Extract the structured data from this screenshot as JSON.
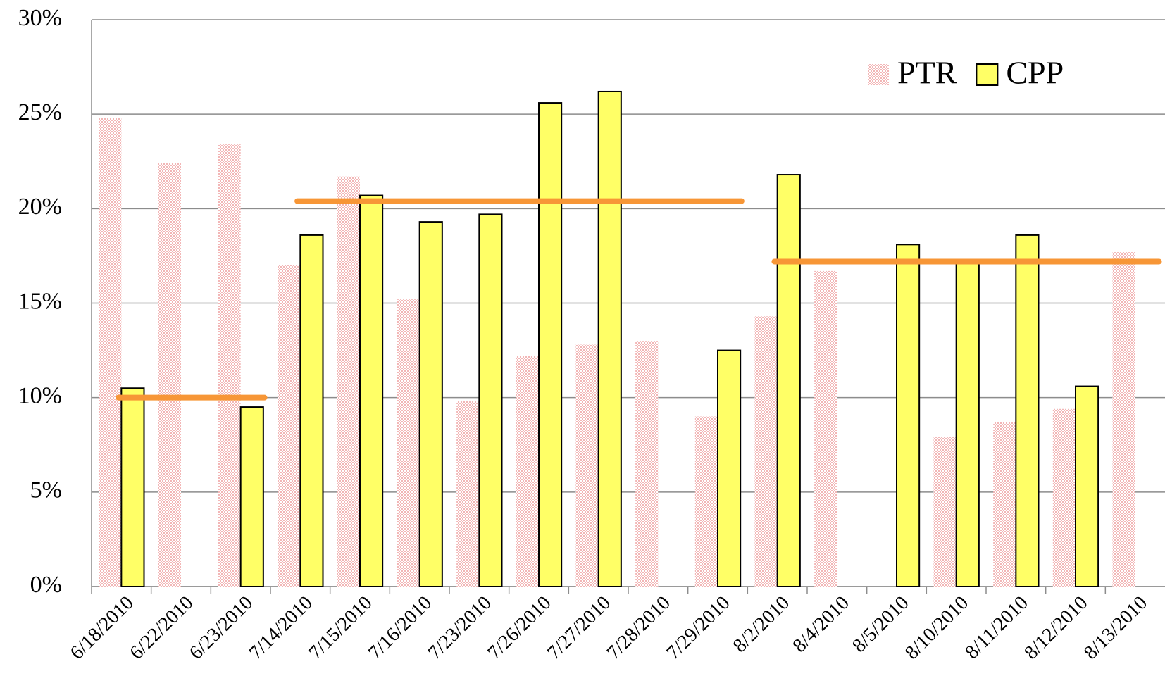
{
  "chart_data": {
    "type": "bar",
    "categories": [
      "6/18/2010",
      "6/22/2010",
      "6/23/2010",
      "7/14/2010",
      "7/15/2010",
      "7/16/2010",
      "7/23/2010",
      "7/26/2010",
      "7/27/2010",
      "7/28/2010",
      "7/29/2010",
      "8/2/2010",
      "8/4/2010",
      "8/5/2010",
      "8/10/2010",
      "8/11/2010",
      "8/12/2010",
      "8/13/2010"
    ],
    "series": [
      {
        "name": "PTR",
        "color": "#f2b6b6",
        "values": [
          24.8,
          22.4,
          23.4,
          17.0,
          21.7,
          15.2,
          9.8,
          12.2,
          12.8,
          13.0,
          9.0,
          14.3,
          16.7,
          null,
          7.9,
          8.7,
          9.4,
          17.7
        ]
      },
      {
        "name": "CPP",
        "color": "#ffff66",
        "values": [
          10.5,
          null,
          9.5,
          18.6,
          20.7,
          19.3,
          19.7,
          25.6,
          26.2,
          null,
          12.5,
          21.8,
          null,
          18.1,
          17.3,
          18.6,
          10.6,
          null
        ]
      }
    ],
    "reference_lines": [
      {
        "value": 10.0,
        "from": "6/18/2010",
        "to": "6/23/2010"
      },
      {
        "value": 20.4,
        "from": "7/14/2010",
        "to": "7/29/2010"
      },
      {
        "value": 17.2,
        "from": "8/2/2010",
        "to": "8/13/2010"
      }
    ],
    "reference_color": "#f79636",
    "ylim": [
      0,
      30
    ],
    "yticks": [
      {
        "value": 0,
        "label": "0%"
      },
      {
        "value": 5,
        "label": "5%"
      },
      {
        "value": 10,
        "label": "10%"
      },
      {
        "value": 15,
        "label": "15%"
      },
      {
        "value": 20,
        "label": "20%"
      },
      {
        "value": 25,
        "label": "25%"
      },
      {
        "value": 30,
        "label": "30%"
      }
    ],
    "grid": true,
    "legend": "upper right"
  }
}
